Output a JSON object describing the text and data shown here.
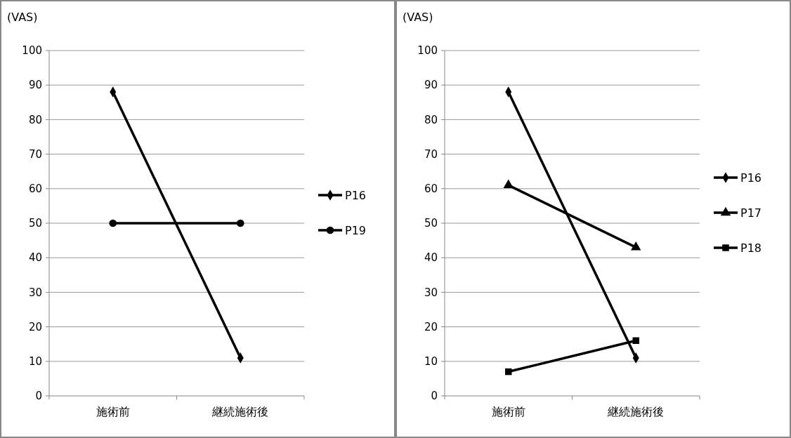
{
  "chart_data": [
    {
      "type": "line",
      "ylabel": "(VAS)",
      "categories": [
        "施術前",
        "継続施術後"
      ],
      "ylim": [
        0,
        100
      ],
      "yticks": [
        0,
        10,
        20,
        30,
        40,
        50,
        60,
        70,
        80,
        90,
        100
      ],
      "grid": "y",
      "legend": "right",
      "series": [
        {
          "name": "P16",
          "color": "#000000",
          "marker": "diamond",
          "values": [
            88,
            11
          ]
        },
        {
          "name": "P19",
          "color": "#000000",
          "marker": "circle",
          "values": [
            50,
            50
          ]
        }
      ]
    },
    {
      "type": "line",
      "ylabel": "(VAS)",
      "categories": [
        "施術前",
        "継続施術後"
      ],
      "ylim": [
        0,
        100
      ],
      "yticks": [
        0,
        10,
        20,
        30,
        40,
        50,
        60,
        70,
        80,
        90,
        100
      ],
      "grid": "y",
      "legend": "right",
      "series": [
        {
          "name": "P16",
          "color": "#000000",
          "marker": "diamond",
          "values": [
            88,
            11
          ]
        },
        {
          "name": "P17",
          "color": "#000000",
          "marker": "triangle",
          "values": [
            61,
            43
          ]
        },
        {
          "name": "P18",
          "color": "#000000",
          "marker": "square",
          "values": [
            7,
            16
          ]
        }
      ]
    }
  ]
}
